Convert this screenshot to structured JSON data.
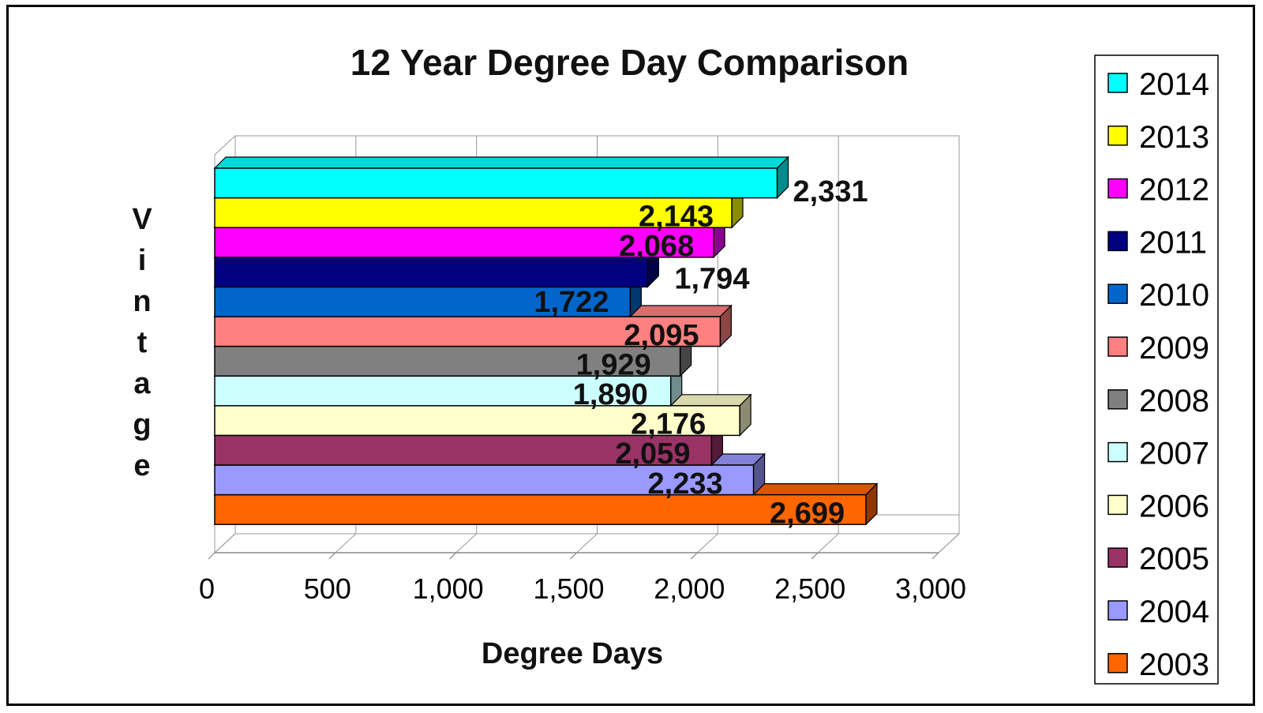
{
  "chart_data": {
    "type": "bar",
    "orientation": "horizontal",
    "title": "12 Year Degree Day Comparison",
    "xlabel": "Degree Days",
    "ylabel": "Vintage",
    "xlim": [
      0,
      3000
    ],
    "x_ticks": [
      "0",
      "500",
      "1,000",
      "1,500",
      "2,000",
      "2,500",
      "3,000"
    ],
    "grid": true,
    "legend_position": "right",
    "categories": [
      "2014",
      "2013",
      "2012",
      "2011",
      "2010",
      "2009",
      "2008",
      "2007",
      "2006",
      "2005",
      "2004",
      "2003"
    ],
    "values": [
      2331,
      2143,
      2068,
      1794,
      1722,
      2095,
      1929,
      1890,
      2176,
      2059,
      2233,
      2699
    ],
    "value_labels": [
      "2,331",
      "2,143",
      "2,068",
      "1,794",
      "1,722",
      "2,095",
      "1,929",
      "1,890",
      "2,176",
      "2,059",
      "2,233",
      "2,699"
    ],
    "colors": [
      "#00FFFF",
      "#FFFF00",
      "#FF00FF",
      "#000080",
      "#0066CC",
      "#FF8080",
      "#808080",
      "#CCFFFF",
      "#FFFFCC",
      "#993366",
      "#9999FF",
      "#FF6600"
    ]
  }
}
